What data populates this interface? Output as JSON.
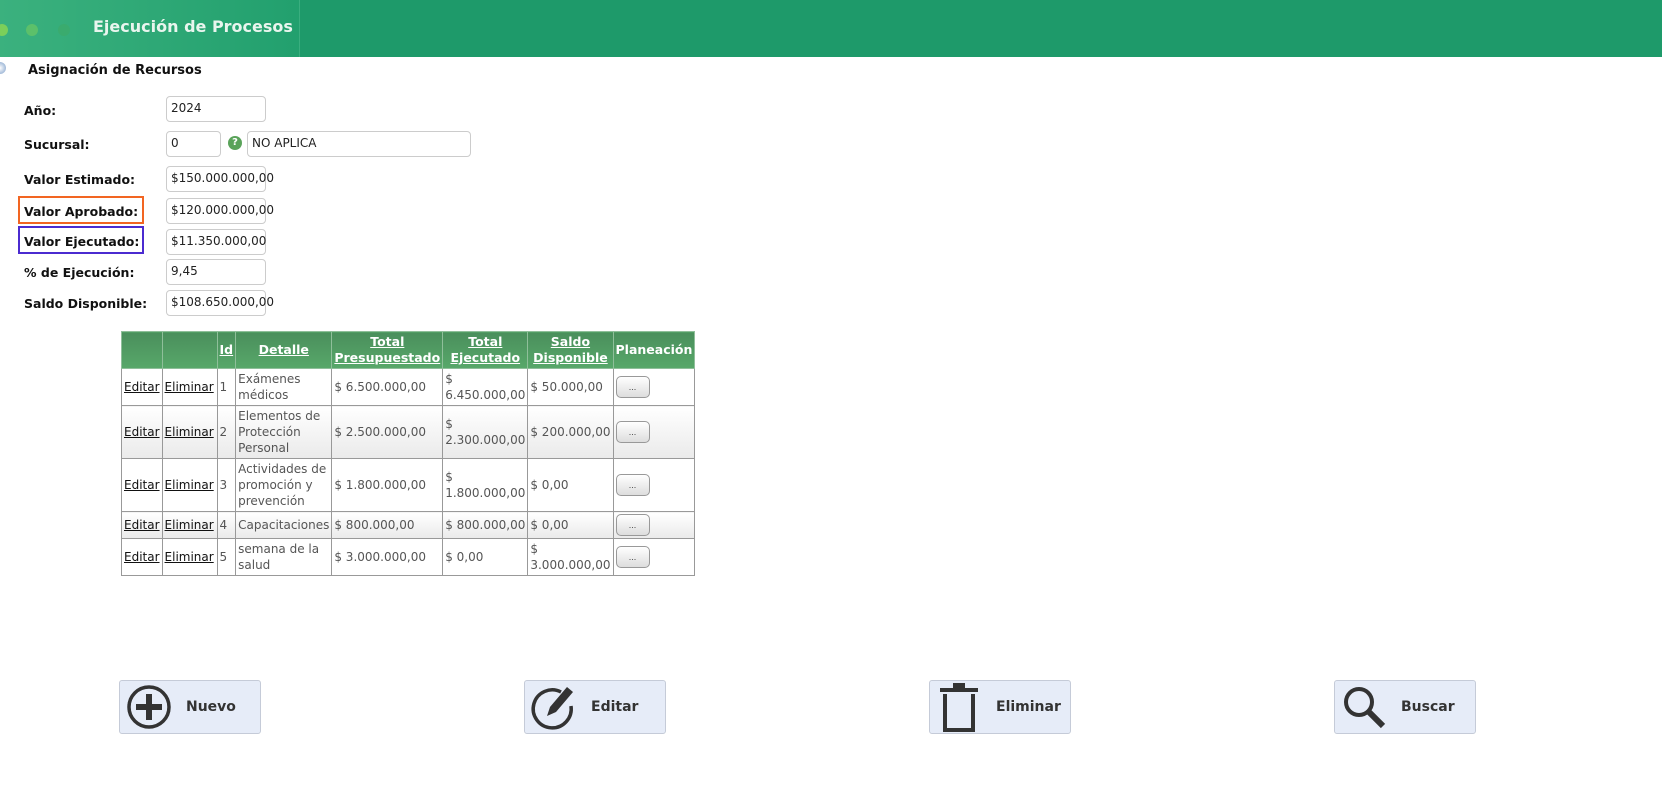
{
  "header": {
    "title": "Ejecución de Procesos"
  },
  "section": {
    "title": "Asignación de Recursos"
  },
  "form": {
    "anio": {
      "label": "Año:",
      "value": "2024"
    },
    "sucursal": {
      "label": "Sucursal:",
      "code": "0",
      "name": "NO APLICA"
    },
    "valor_estimado": {
      "label": "Valor Estimado:",
      "value": "$150.000.000,00"
    },
    "valor_aprobado": {
      "label": "Valor Aprobado:",
      "value": "$120.000.000,00"
    },
    "valor_ejecutado": {
      "label": "Valor Ejecutado:",
      "value": "$11.350.000,00"
    },
    "pct_ejecucion": {
      "label": "% de Ejecución:",
      "value": "9,45"
    },
    "saldo_disponible": {
      "label": "Saldo Disponible:",
      "value": "$108.650.000,00"
    }
  },
  "highlight_colors": {
    "valor_aprobado": "#f26522",
    "valor_ejecutado": "#4b2bd0"
  },
  "table": {
    "headers": [
      "",
      "",
      "Id",
      "Detalle",
      "Total Presupuestado",
      "Total Ejecutado",
      "Saldo Disponible",
      "Planeación"
    ],
    "edit_label": "Editar",
    "delete_label": "Eliminar",
    "plan_label": "...",
    "rows": [
      {
        "id": "1",
        "detalle": "Exámenes médicos",
        "presupuestado": "$ 6.500.000,00",
        "ejecutado": "$ 6.450.000,00",
        "saldo": "$ 50.000,00"
      },
      {
        "id": "2",
        "detalle": "Elementos de Protección Personal",
        "presupuestado": "$ 2.500.000,00",
        "ejecutado": "$ 2.300.000,00",
        "saldo": "$ 200.000,00"
      },
      {
        "id": "3",
        "detalle": "Actividades de promoción y prevención",
        "presupuestado": "$ 1.800.000,00",
        "ejecutado": "$ 1.800.000,00",
        "saldo": "$ 0,00"
      },
      {
        "id": "4",
        "detalle": "Capacitaciones",
        "presupuestado": "$ 800.000,00",
        "ejecutado": "$ 800.000,00",
        "saldo": "$ 0,00"
      },
      {
        "id": "5",
        "detalle": "semana de la salud",
        "presupuestado": "$ 3.000.000,00",
        "ejecutado": "$ 0,00",
        "saldo": "$ 3.000.000,00"
      }
    ]
  },
  "buttons": {
    "nuevo": "Nuevo",
    "editar": "Editar",
    "eliminar": "Eliminar",
    "buscar": "Buscar"
  }
}
